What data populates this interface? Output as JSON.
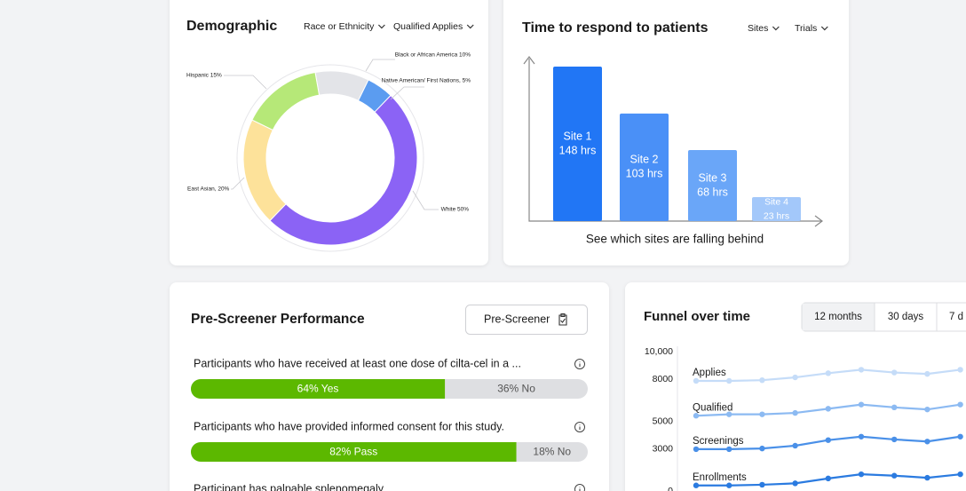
{
  "chart_data": [
    {
      "type": "pie",
      "title": "Demographic",
      "filters": [
        "Race or Ethnicity",
        "Qualified Applies"
      ],
      "values": [
        10,
        5,
        50,
        20,
        15
      ],
      "value_labels": [
        "Black or African America 10%",
        "Native American/ First Nations, 5%",
        "White 50%",
        "East Asian, 20%",
        "Hispanic 15%"
      ],
      "colors": [
        "#e3e4e8",
        "#5b9cf0",
        "#8b63f5",
        "#fde29a",
        "#b6e878"
      ]
    },
    {
      "type": "bar",
      "title": "Time to respond to patients",
      "filters": [
        "Sites",
        "Trials"
      ],
      "categories": [
        "Site 1",
        "Site 2",
        "Site 3",
        "Site 4"
      ],
      "values": [
        148,
        103,
        68,
        23
      ],
      "value_labels": [
        "148 hrs",
        "103 hrs",
        "68 hrs",
        "23 hrs"
      ],
      "colors": [
        "#2176f5",
        "#4a90f7",
        "#6aa6f8",
        "#a3c8fa"
      ],
      "caption": "See which sites are falling behind"
    },
    {
      "type": "line",
      "title": "Funnel over time",
      "tabs": [
        "12 months",
        "30 days",
        "7 d"
      ],
      "categories": [
        null,
        null,
        null,
        null,
        null,
        null,
        null,
        null,
        null
      ],
      "series": [
        {
          "name": "Applies",
          "color": "#c5dcf8",
          "values": [
            7900,
            7900,
            7950,
            8150,
            8450,
            8700,
            8500,
            8400,
            8700
          ]
        },
        {
          "name": "Qualified",
          "color": "#8cbaf2",
          "values": [
            5400,
            5500,
            5500,
            5600,
            5900,
            6200,
            6000,
            5850,
            6200
          ]
        },
        {
          "name": "Screenings",
          "color": "#4a90e8",
          "values": [
            3000,
            3000,
            3050,
            3250,
            3650,
            3900,
            3700,
            3550,
            3900
          ]
        },
        {
          "name": "Enrollments",
          "color": "#2b7be0",
          "values": [
            400,
            400,
            450,
            550,
            900,
            1200,
            1100,
            950,
            1200
          ]
        }
      ],
      "ylim": [
        0,
        10000
      ],
      "yticks": [
        {
          "value": 10000,
          "label": "10,000"
        },
        8000,
        5000,
        3000,
        0
      ]
    }
  ],
  "prescreener": {
    "title": "Pre-Screener Performance",
    "button": "Pre-Screener",
    "colors": [
      "#5cb800",
      "#dedfe2"
    ],
    "questions": [
      {
        "text": "Participants who have received at least one dose of cilta-cel in a ...",
        "values": [
          64,
          36
        ],
        "value_labels": [
          "64% Yes",
          "36% No"
        ]
      },
      {
        "text": "Participants who have provided informed consent for this study.",
        "values": [
          82,
          18
        ],
        "value_labels": [
          "82% Pass",
          "18% No"
        ]
      },
      {
        "text": "Participant has palpable splenomegaly"
      }
    ]
  }
}
